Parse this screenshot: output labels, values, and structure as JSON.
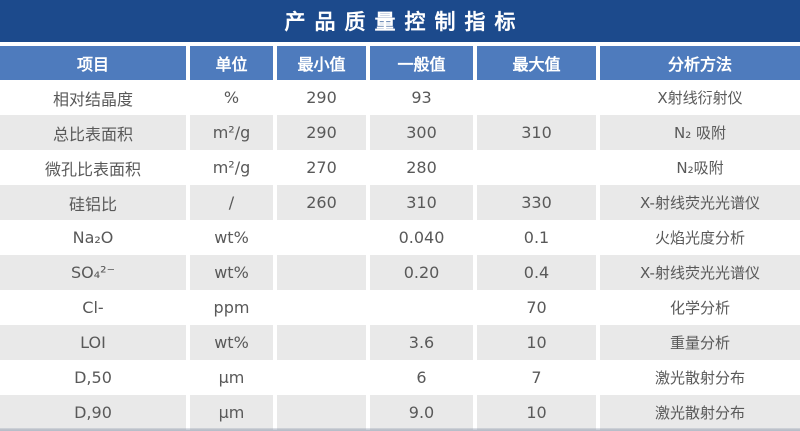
{
  "title": "产品质量控制指标",
  "colors": {
    "title_bar": "#1c4a8c",
    "header_bg": "#4e7bbd",
    "row_alt": "#e9e9e9",
    "text": "#595959"
  },
  "table": {
    "headers": [
      "项目",
      "单位",
      "最小值",
      "一般值",
      "最大值",
      "分析方法"
    ],
    "rows": [
      {
        "item": "相对结晶度",
        "unit": "%",
        "min": "290",
        "typical": "93",
        "max": "",
        "method": "X射线衍射仪"
      },
      {
        "item": "总比表面积",
        "unit": "m²/g",
        "min": "290",
        "typical": "300",
        "max": "310",
        "method": "N₂ 吸附"
      },
      {
        "item": "微孔比表面积",
        "unit": "m²/g",
        "min": "270",
        "typical": "280",
        "max": "",
        "method": "N₂吸附"
      },
      {
        "item": "硅铝比",
        "unit": "/",
        "min": "260",
        "typical": "310",
        "max": "330",
        "method": "X-射线荧光光谱仪"
      },
      {
        "item": "Na₂O",
        "unit": "wt%",
        "min": "",
        "typical": "0.040",
        "max": "0.1",
        "method": "火焰光度分析"
      },
      {
        "item": "SO₄²⁻",
        "unit": "wt%",
        "min": "",
        "typical": "0.20",
        "max": "0.4",
        "method": "X-射线荧光光谱仪"
      },
      {
        "item": "Cl-",
        "unit": "ppm",
        "min": "",
        "typical": "",
        "max": "70",
        "method": "化学分析"
      },
      {
        "item": "LOI",
        "unit": "wt%",
        "min": "",
        "typical": "3.6",
        "max": "10",
        "method": "重量分析"
      },
      {
        "item": "D,50",
        "unit": "μm",
        "min": "",
        "typical": "6",
        "max": "7",
        "method": "激光散射分布"
      },
      {
        "item": "D,90",
        "unit": "μm",
        "min": "",
        "typical": "9.0",
        "max": "10",
        "method": "激光散射分布"
      }
    ]
  }
}
